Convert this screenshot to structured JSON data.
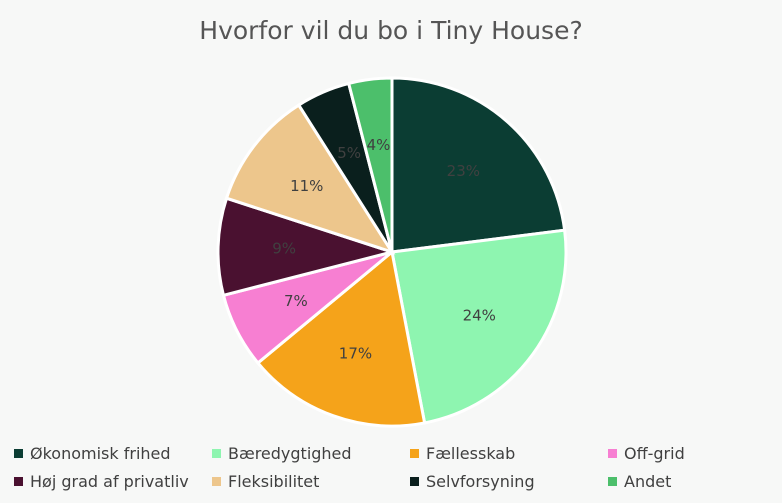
{
  "chart_data": {
    "type": "pie",
    "title": "Hvorfor vil du bo i Tiny House?",
    "categories": [
      "Økonomisk frihed",
      "Bæredygtighed",
      "Fællesskab",
      "Off-grid",
      "Høj grad af privatliv",
      "Fleksibilitet",
      "Selvforsyning",
      "Andet"
    ],
    "values": [
      23,
      24,
      17,
      7,
      9,
      11,
      5,
      4
    ],
    "labels": [
      "23%",
      "24%",
      "17%",
      "7%",
      "9%",
      "11%",
      "5%",
      "4%"
    ],
    "colors": [
      "#0b3d33",
      "#8ef5b0",
      "#f5a31a",
      "#f77fd2",
      "#4a1130",
      "#edc68c",
      "#0a1f1d",
      "#4cbf6b"
    ],
    "legend": "bottom"
  }
}
